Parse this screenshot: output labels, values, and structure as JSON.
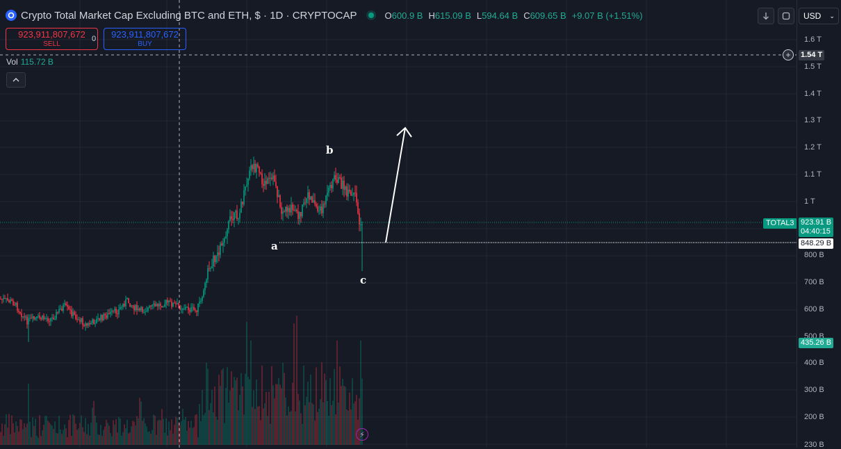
{
  "header": {
    "symbol_title": "Crypto Total Market Cap Excluding BTC and ETH, $ · 1D · CRYPTOCAP",
    "ohlc": {
      "o_label": "O",
      "o_value": "600.9 B",
      "h_label": "H",
      "h_value": "615.09 B",
      "l_label": "L",
      "l_value": "594.64 B",
      "c_label": "C",
      "c_value": "609.65 B",
      "change": "+9.07 B (+1.51%)"
    }
  },
  "trade": {
    "sell_price": "923,911,807,672",
    "sell_label": "SELL",
    "spread": "0",
    "buy_price": "923,911,807,672",
    "buy_label": "BUY"
  },
  "volume": {
    "label": "Vol",
    "value": "115.72 B"
  },
  "toolbar": {
    "currency": "USD"
  },
  "price_axis": {
    "ticks": [
      "1.6 T",
      "1.5 T",
      "1.4 T",
      "1.3 T",
      "1.2 T",
      "1.1 T",
      "1 T",
      "800 B",
      "700 B",
      "600 B",
      "500 B",
      "400 B",
      "300 B",
      "200 B",
      "230 B"
    ],
    "crosshair_price": "1.54 T",
    "last_price": "923.91 B",
    "countdown": "04:40:15",
    "line_price": "848.29 B",
    "volume_label": "435.26 B"
  },
  "series_tag": "TOTAL3",
  "wave_labels": {
    "a": "a",
    "b": "b",
    "c": "c"
  },
  "colors": {
    "up": "#089981",
    "down": "#f23645",
    "background": "#161a25",
    "grid": "#232733"
  },
  "icons": {
    "logo": "cryptocap-logo",
    "down_arrow": "arrow-down-icon",
    "fullscreen": "fullscreen-icon",
    "collapse": "chevron-up-icon",
    "plus": "plus-circle-icon",
    "flash": "lightning-icon"
  }
}
